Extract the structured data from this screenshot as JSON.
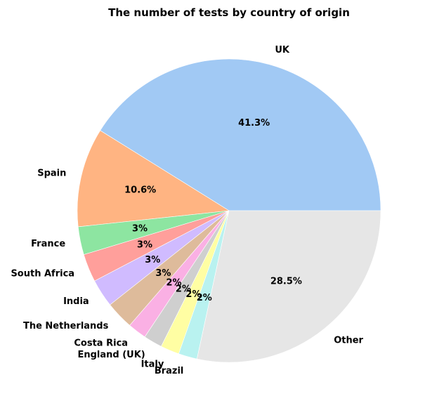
{
  "chart_data": {
    "type": "pie",
    "title": "The number of tests by country of origin",
    "slices": [
      {
        "label": "UK",
        "value": 41.3,
        "pct_label": "41.3%",
        "color": "#a1c9f4"
      },
      {
        "label": "Spain",
        "value": 10.6,
        "pct_label": "10.6%",
        "color": "#ffb482"
      },
      {
        "label": "France",
        "value": 3,
        "pct_label": "3%",
        "color": "#8de5a1"
      },
      {
        "label": "South Africa",
        "value": 3,
        "pct_label": "3%",
        "color": "#ff9f9b"
      },
      {
        "label": "India",
        "value": 3,
        "pct_label": "3%",
        "color": "#d0bbff"
      },
      {
        "label": "The Netherlands",
        "value": 3,
        "pct_label": "3%",
        "color": "#debb9b"
      },
      {
        "label": "Costa Rica",
        "value": 2,
        "pct_label": "2%",
        "color": "#fab0e4"
      },
      {
        "label": "England (UK)",
        "value": 2,
        "pct_label": "2%",
        "color": "#cfcfcf"
      },
      {
        "label": "Italy",
        "value": 2,
        "pct_label": "2%",
        "color": "#fffea3"
      },
      {
        "label": "Brazil",
        "value": 2,
        "pct_label": "2%",
        "color": "#b9f2f0"
      },
      {
        "label": "Other",
        "value": 28.5,
        "pct_label": "28.5%",
        "color": "#e6e6e6"
      }
    ]
  }
}
